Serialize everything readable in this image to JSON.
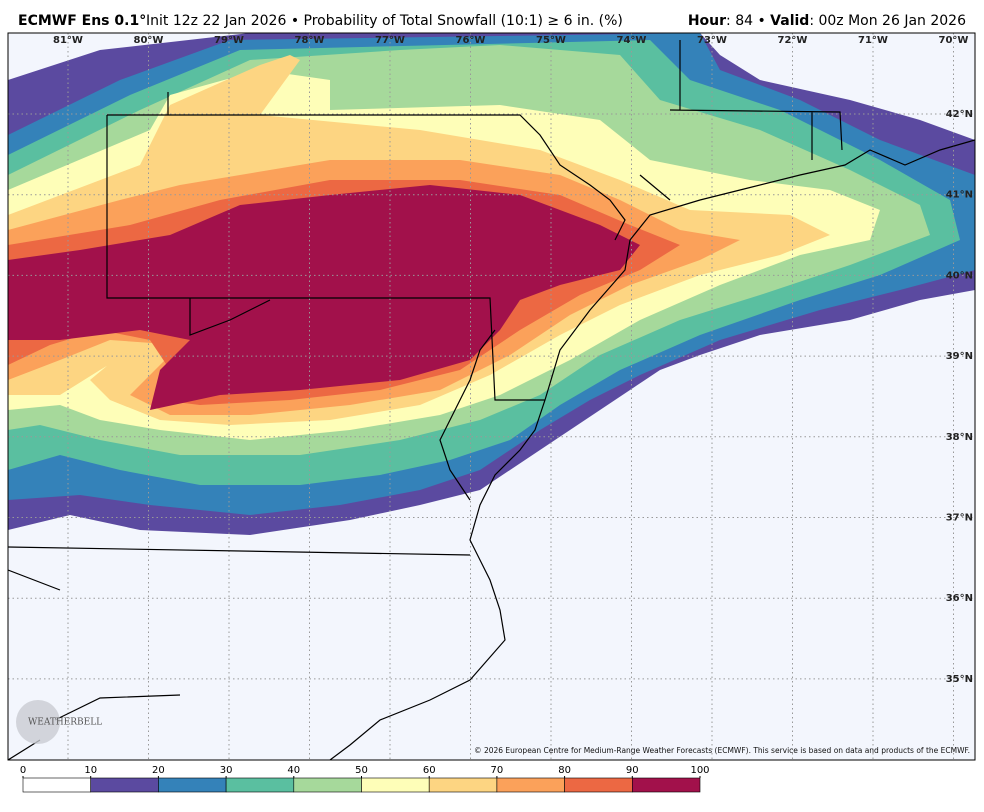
{
  "header": {
    "model": "ECMWF Ens 0.1°",
    "description": "Init 12z 22 Jan 2026 • Probability of Total Snowfall (10:1)  ≥  6 in. (%)",
    "hour_label": "Hour",
    "hour_value": ": 84 • ",
    "valid_label": "Valid",
    "valid_value": ": 00z Mon 26 Jan 2026"
  },
  "map": {
    "longitudes": [
      "81°W",
      "80°W",
      "79°W",
      "78°W",
      "77°W",
      "76°W",
      "75°W",
      "74°W",
      "73°W",
      "72°W",
      "71°W",
      "70°W"
    ],
    "latitudes": [
      "42°N",
      "41°N",
      "40°N",
      "39°N",
      "38°N",
      "37°N",
      "36°N",
      "35°N"
    ],
    "copyright": "© 2026 European Centre for Medium-Range Weather Forecasts (ECMWF). This service is based on data and products of the ECMWF.",
    "logo": "WEATHERBELL"
  },
  "legend": {
    "ticks": [
      0,
      10,
      20,
      30,
      40,
      50,
      60,
      70,
      80,
      90,
      100
    ],
    "colors": [
      "#ffffff",
      "#5b4aa0",
      "#3482b9",
      "#5abfa0",
      "#a6d99b",
      "#fefeb8",
      "#fdd582",
      "#fba15a",
      "#ec6843",
      "#a2114b"
    ]
  }
}
